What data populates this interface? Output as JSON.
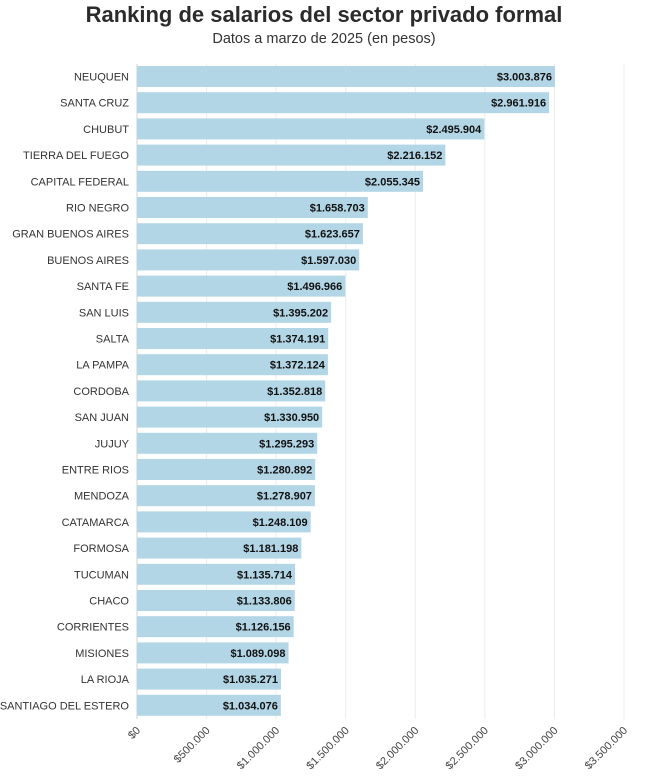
{
  "chart_data": {
    "type": "bar",
    "orientation": "horizontal",
    "title": "Ranking de salarios del sector privado formal",
    "subtitle": "Datos a marzo de 2025 (en pesos)",
    "categories": [
      "NEUQUEN",
      "SANTA CRUZ",
      "CHUBUT",
      "TIERRA DEL FUEGO",
      "CAPITAL FEDERAL",
      "RIO NEGRO",
      "GRAN BUENOS AIRES",
      "BUENOS AIRES",
      "SANTA FE",
      "SAN LUIS",
      "SALTA",
      "LA PAMPA",
      "CORDOBA",
      "SAN JUAN",
      "JUJUY",
      "ENTRE RIOS",
      "MENDOZA",
      "CATAMARCA",
      "FORMOSA",
      "TUCUMAN",
      "CHACO",
      "CORRIENTES",
      "MISIONES",
      "LA RIOJA",
      "SANTIAGO DEL ESTERO"
    ],
    "values": [
      3003876,
      2961916,
      2495904,
      2216152,
      2055345,
      1658703,
      1623657,
      1597030,
      1496966,
      1395202,
      1374191,
      1372124,
      1352818,
      1330950,
      1295293,
      1280892,
      1278907,
      1248109,
      1181198,
      1135714,
      1133806,
      1126156,
      1089098,
      1035271,
      1034076
    ],
    "value_labels": [
      "$3.003.876",
      "$2.961.916",
      "$2.495.904",
      "$2.216.152",
      "$2.055.345",
      "$1.658.703",
      "$1.623.657",
      "$1.597.030",
      "$1.496.966",
      "$1.395.202",
      "$1.374.191",
      "$1.372.124",
      "$1.352.818",
      "$1.330.950",
      "$1.295.293",
      "$1.280.892",
      "$1.278.907",
      "$1.248.109",
      "$1.181.198",
      "$1.135.714",
      "$1.133.806",
      "$1.126.156",
      "$1.089.098",
      "$1.035.271",
      "$1.034.076"
    ],
    "xlim": [
      0,
      3500000
    ],
    "xticks": [
      0,
      500000,
      1000000,
      1500000,
      2000000,
      2500000,
      3000000,
      3500000
    ],
    "xtick_labels": [
      "$0",
      "$500.000",
      "$1.000.000",
      "$1.500.000",
      "$2.000.000",
      "$2.500.000",
      "$3.000.000",
      "$3.500.000"
    ],
    "bar_color": "#b3d6e6",
    "grid": true
  }
}
